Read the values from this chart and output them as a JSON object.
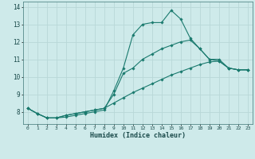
{
  "xlabel": "Humidex (Indice chaleur)",
  "ylabel": "",
  "bg_color": "#ceeaea",
  "line_color": "#1a7a6e",
  "grid_color": "#b8d8d8",
  "xlim": [
    -0.5,
    23.5
  ],
  "ylim": [
    7.3,
    14.3
  ],
  "yticks": [
    8,
    9,
    10,
    11,
    12,
    13,
    14
  ],
  "xticks": [
    0,
    1,
    2,
    3,
    4,
    5,
    6,
    7,
    8,
    9,
    10,
    11,
    12,
    13,
    14,
    15,
    16,
    17,
    18,
    19,
    20,
    21,
    22,
    23
  ],
  "line1_x": [
    0,
    1,
    2,
    3,
    4,
    5,
    6,
    7,
    8,
    9,
    10,
    11,
    12,
    13,
    14,
    15,
    16,
    17,
    18,
    19,
    20,
    21,
    22,
    23
  ],
  "line1_y": [
    8.2,
    7.9,
    7.65,
    7.65,
    7.7,
    7.8,
    7.9,
    8.0,
    8.1,
    9.2,
    10.5,
    12.4,
    13.0,
    13.1,
    13.1,
    13.8,
    13.3,
    12.2,
    11.6,
    11.0,
    11.0,
    10.5,
    10.4,
    10.4
  ],
  "line2_x": [
    0,
    1,
    2,
    3,
    4,
    5,
    6,
    7,
    8,
    9,
    10,
    11,
    12,
    13,
    14,
    15,
    16,
    17,
    18,
    19,
    20,
    21,
    22,
    23
  ],
  "line2_y": [
    8.2,
    7.9,
    7.65,
    7.65,
    7.8,
    7.9,
    8.0,
    8.1,
    8.2,
    9.0,
    10.2,
    10.5,
    11.0,
    11.3,
    11.6,
    11.8,
    12.0,
    12.1,
    11.6,
    11.0,
    10.9,
    10.5,
    10.4,
    10.4
  ],
  "line3_x": [
    0,
    1,
    2,
    3,
    4,
    5,
    6,
    7,
    8,
    9,
    10,
    11,
    12,
    13,
    14,
    15,
    16,
    17,
    18,
    19,
    20,
    21,
    22,
    23
  ],
  "line3_y": [
    8.2,
    7.9,
    7.65,
    7.65,
    7.8,
    7.9,
    8.0,
    8.1,
    8.2,
    8.5,
    8.8,
    9.1,
    9.35,
    9.6,
    9.85,
    10.1,
    10.3,
    10.5,
    10.7,
    10.85,
    10.9,
    10.5,
    10.4,
    10.4
  ]
}
